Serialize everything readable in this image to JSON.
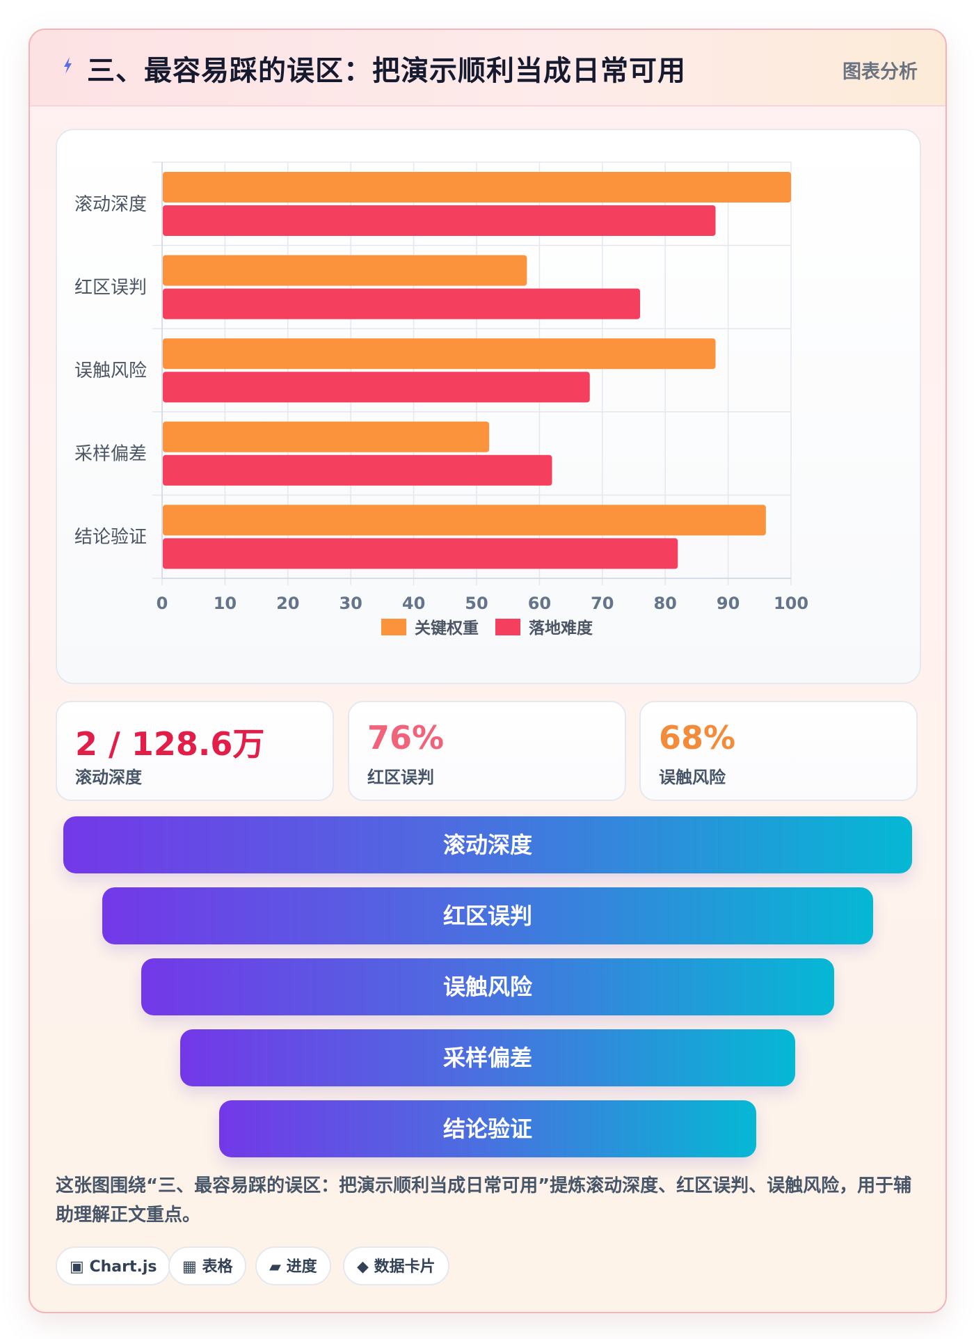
{
  "header": {
    "title": "三、最容易踩的误区：把演示顺利当成日常可用",
    "tag": "图表分析"
  },
  "chart_data": {
    "type": "bar",
    "orientation": "horizontal",
    "categories": [
      "滚动深度",
      "红区误判",
      "误触风险",
      "采样偏差",
      "结论验证"
    ],
    "series": [
      {
        "name": "关键权重",
        "values": [
          100,
          58,
          88,
          52,
          96
        ],
        "color": "#fb923c"
      },
      {
        "name": "落地难度",
        "values": [
          88,
          76,
          68,
          62,
          82
        ],
        "color": "#f43f5e"
      }
    ],
    "xlim": [
      0,
      100
    ],
    "xticks": [
      0,
      10,
      20,
      30,
      40,
      50,
      60,
      70,
      80,
      90,
      100
    ],
    "grid": true,
    "legend": "bottom"
  },
  "stats": [
    {
      "value": "2 / 128.6万",
      "label": "滚动深度",
      "color": "#e11d48"
    },
    {
      "value": "76%",
      "label": "红区误判",
      "color": "#f0637a"
    },
    {
      "value": "68%",
      "label": "误触风险",
      "color": "#f28c3a"
    }
  ],
  "funnel": [
    "滚动深度",
    "红区误判",
    "误触风险",
    "采样偏差",
    "结论验证"
  ],
  "description": "这张图围绕“三、最容易踩的误区：把演示顺利当成日常可用”提炼滚动深度、红区误判、误触风险，用于辅助理解正文重点。",
  "chips": [
    {
      "icon": "▣",
      "icon_name": "chart-icon",
      "label": "Chart.js"
    },
    {
      "icon": "▦",
      "icon_name": "table-icon",
      "label": "表格"
    },
    {
      "icon": "▰",
      "icon_name": "progress-icon",
      "label": "进度"
    },
    {
      "icon": "◆",
      "icon_name": "card-icon",
      "label": "数据卡片"
    }
  ]
}
